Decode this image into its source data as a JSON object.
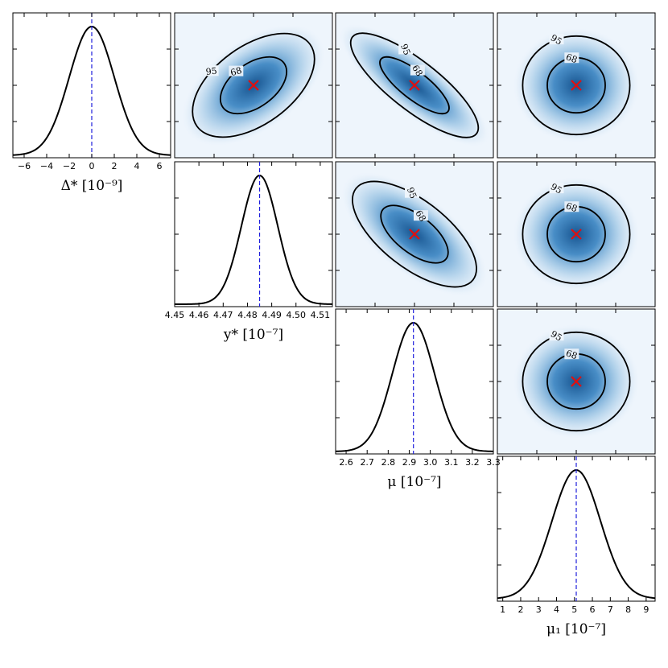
{
  "chart_data": {
    "type": "corner",
    "parameters": [
      {
        "key": "delta",
        "label": "Δ* [10⁻⁹]",
        "mean": 0,
        "sigma": 2.0,
        "xlim": [
          -7,
          7
        ],
        "ticks": [
          -6,
          -4,
          -2,
          0,
          2,
          4,
          6
        ],
        "tick_labels": [
          "−6",
          "−4",
          "−2",
          "0",
          "2",
          "4",
          "6"
        ],
        "truth": 0
      },
      {
        "key": "y",
        "label": "y* [10⁻⁷]",
        "mean": 4.485,
        "sigma": 0.0075,
        "xlim": [
          4.45,
          4.515
        ],
        "ticks": [
          4.45,
          4.46,
          4.47,
          4.48,
          4.49,
          4.5,
          4.51
        ],
        "tick_labels": [
          "4.45",
          "4.46",
          "4.47",
          "4.48",
          "4.49",
          "4.50",
          "4.51"
        ],
        "truth": 4.485
      },
      {
        "key": "mu",
        "label": "μ [10⁻⁷]",
        "mean": 2.92,
        "sigma": 0.1,
        "xlim": [
          2.55,
          3.3
        ],
        "ticks": [
          2.6,
          2.7,
          2.8,
          2.9,
          3.0,
          3.1,
          3.2,
          3.3
        ],
        "tick_labels": [
          "2.6",
          "2.7",
          "2.8",
          "2.9",
          "3.0",
          "3.1",
          "3.2",
          "3.3"
        ],
        "truth": 2.92
      },
      {
        "key": "mu1",
        "label": "μ₁ [10⁻⁷]",
        "mean": 5.1,
        "sigma": 1.35,
        "xlim": [
          0.7,
          9.5
        ],
        "ticks": [
          1,
          2,
          3,
          4,
          5,
          6,
          7,
          8,
          9
        ],
        "tick_labels": [
          "1",
          "2",
          "3",
          "4",
          "5",
          "6",
          "7",
          "8",
          "9"
        ],
        "truth": 5.1
      }
    ],
    "pairs": [
      {
        "row": 0,
        "col": 1,
        "correlation": 0.55,
        "levels": [
          "68",
          "95"
        ]
      },
      {
        "row": 0,
        "col": 2,
        "correlation": -0.85,
        "levels": [
          "68",
          "95"
        ]
      },
      {
        "row": 0,
        "col": 3,
        "correlation": 0.0,
        "levels": [
          "68",
          "95"
        ]
      },
      {
        "row": 1,
        "col": 2,
        "correlation": -0.7,
        "levels": [
          "68",
          "95"
        ]
      },
      {
        "row": 1,
        "col": 3,
        "correlation": 0.0,
        "levels": [
          "68",
          "95"
        ]
      },
      {
        "row": 2,
        "col": 3,
        "correlation": 0.0,
        "levels": [
          "68",
          "95"
        ]
      }
    ],
    "colors": {
      "density": "#1f6fb0",
      "truth_line": "#1f1fdd",
      "marker": "#e01010",
      "contour": "#000000"
    }
  }
}
